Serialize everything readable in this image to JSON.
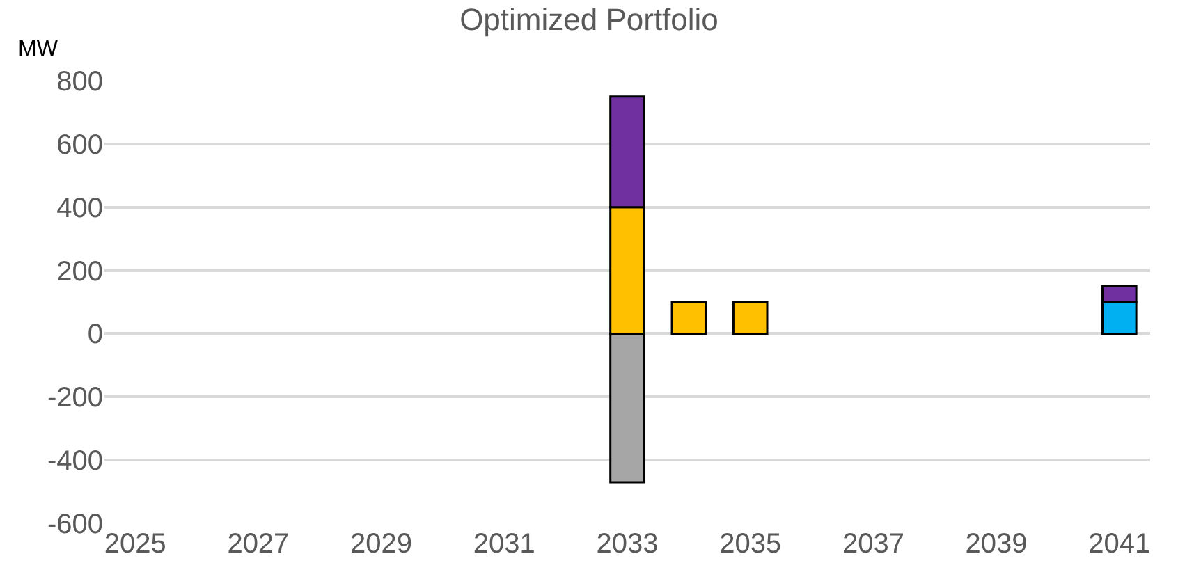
{
  "chart_data": {
    "type": "bar",
    "title": "Optimized Portfolio",
    "ylabel": "MW",
    "stacked": true,
    "categories": [
      "2025",
      null,
      "2027",
      null,
      "2029",
      null,
      "2031",
      null,
      "2033",
      null,
      "2035",
      null,
      "2037",
      null,
      "2039",
      null,
      "2041"
    ],
    "series": [
      {
        "color": "#a6a6a6",
        "values": [
          null,
          null,
          null,
          null,
          null,
          null,
          null,
          null,
          -470,
          null,
          null,
          null,
          null,
          null,
          null,
          null,
          null
        ]
      },
      {
        "color": "#ffc000",
        "values": [
          null,
          null,
          null,
          null,
          null,
          null,
          null,
          null,
          400,
          100,
          100,
          null,
          null,
          null,
          null,
          null,
          null
        ]
      },
      {
        "color": "#00b0f0",
        "values": [
          null,
          null,
          null,
          null,
          null,
          null,
          null,
          null,
          null,
          null,
          null,
          null,
          null,
          null,
          null,
          null,
          100
        ]
      },
      {
        "color": "#7030a0",
        "values": [
          null,
          null,
          null,
          null,
          null,
          null,
          null,
          null,
          350,
          null,
          null,
          null,
          null,
          null,
          null,
          null,
          50
        ]
      }
    ],
    "ylim": [
      -600,
      800
    ],
    "yticks": [
      -600,
      -400,
      -200,
      0,
      200,
      400,
      600,
      800
    ],
    "grid": "y"
  }
}
